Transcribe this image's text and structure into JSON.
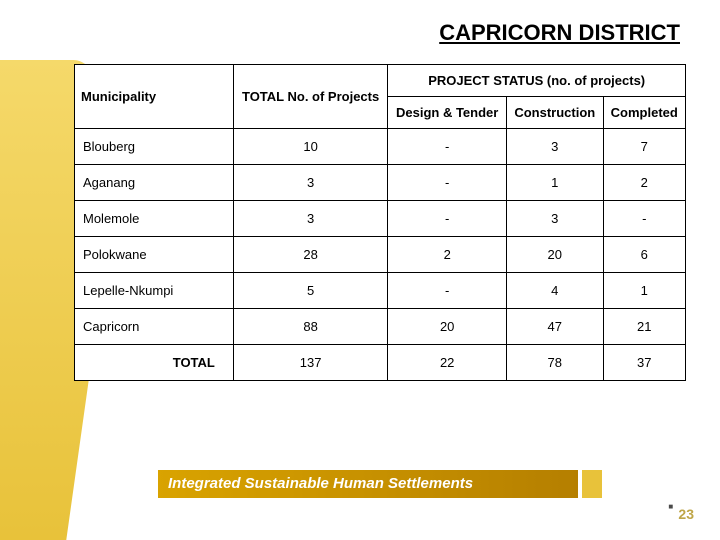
{
  "title": "CAPRICORN DISTRICT",
  "table": {
    "columns": {
      "municipality": "Municipality",
      "total": "TOTAL No. of Projects",
      "status_span": "PROJECT STATUS (no. of projects)",
      "design": "Design & Tender",
      "construction": "Construction",
      "completed": "Completed"
    },
    "rows": [
      {
        "municipality": "Blouberg",
        "total": "10",
        "design": "-",
        "construction": "3",
        "completed": "7"
      },
      {
        "municipality": "Aganang",
        "total": "3",
        "design": "-",
        "construction": "1",
        "completed": "2"
      },
      {
        "municipality": "Molemole",
        "total": "3",
        "design": "-",
        "construction": "3",
        "completed": "-"
      },
      {
        "municipality": "Polokwane",
        "total": "28",
        "design": "2",
        "construction": "20",
        "completed": "6"
      },
      {
        "municipality": "Lepelle-Nkumpi",
        "total": "5",
        "design": "-",
        "construction": "4",
        "completed": "1"
      },
      {
        "municipality": "Capricorn",
        "total": "88",
        "design": "20",
        "construction": "47",
        "completed": "21"
      }
    ],
    "totals": {
      "municipality": "TOTAL",
      "total": "137",
      "design": "22",
      "construction": "78",
      "completed": "37"
    }
  },
  "footer_text": "Integrated Sustainable Human Settlements",
  "slide_number": "23",
  "colors": {
    "accent_gradient_start": "#f5d96a",
    "accent_gradient_end": "#e8c23a",
    "banner_start": "#d9a300",
    "banner_end": "#b57f00",
    "border": "#000000",
    "background": "#ffffff"
  }
}
